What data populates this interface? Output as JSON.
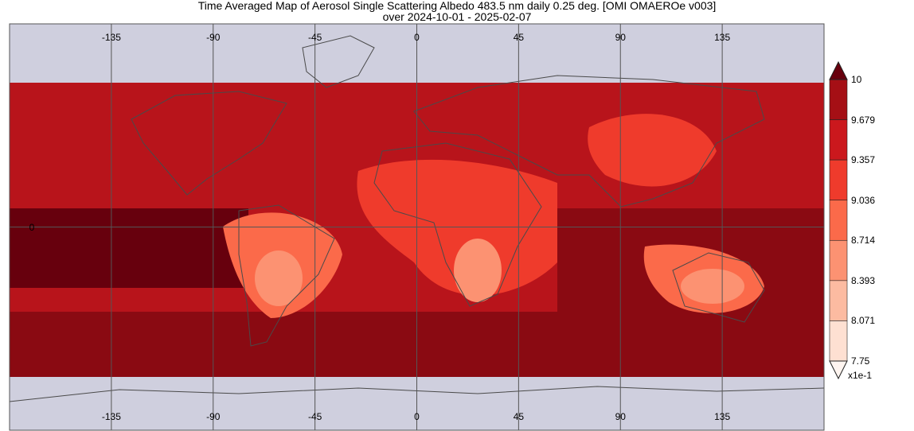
{
  "title": {
    "line1": "Time Averaged Map of Aerosol Single Scattering Albedo 483.5 nm daily 0.25 deg. [OMI OMAEROe v003]",
    "line2": "over 2024-10-01 - 2025-02-07"
  },
  "map": {
    "projection": "equirectangular",
    "lon_ticks": [
      -135,
      -90,
      -45,
      0,
      45,
      90,
      135
    ],
    "lon_tick_labels": [
      "-135",
      "-90",
      "-45",
      "0",
      "45",
      "90",
      "135"
    ],
    "lat_ticks": [
      0
    ],
    "lat_tick_labels": [
      "0"
    ],
    "no_data_color": "#cfcfde",
    "coastline_color": "#4a4a4a",
    "gridline_color": "#555555"
  },
  "colorbar": {
    "labels": [
      "10",
      "9.679",
      "9.357",
      "9.036",
      "8.714",
      "8.393",
      "8.071",
      "7.75"
    ],
    "values": [
      10,
      9.679,
      9.357,
      9.036,
      8.714,
      8.393,
      8.071,
      7.75
    ],
    "colors_top_to_bottom": [
      "#a50f15",
      "#cb181d",
      "#ef3b2c",
      "#fb6a4a",
      "#fc9272",
      "#fcbba1",
      "#fee0d2"
    ],
    "over_color": "#67000d",
    "under_color": "#fff5f0",
    "scale_label": "x1e-1"
  }
}
